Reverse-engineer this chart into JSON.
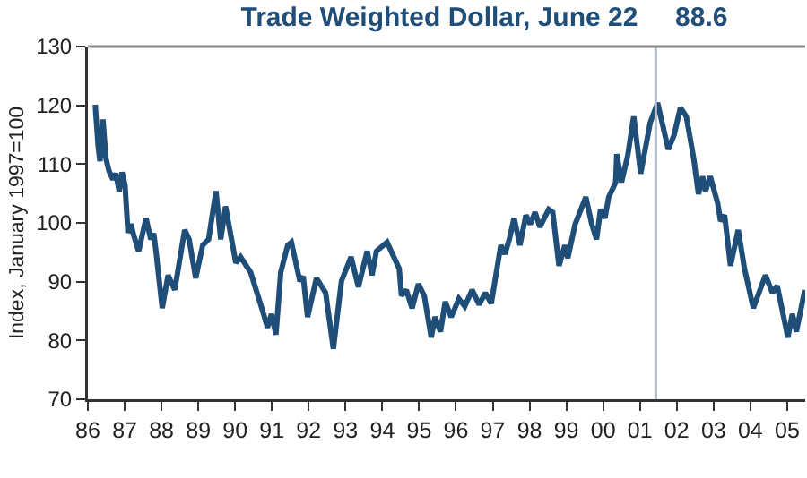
{
  "chart_data": {
    "type": "line",
    "title": "Trade Weighted Dollar, June 22     88.6",
    "ylabel": "Index, January 1997=100",
    "x": [
      1986.2,
      1986.28,
      1986.33,
      1986.41,
      1986.49,
      1986.57,
      1986.68,
      1986.76,
      1986.85,
      1986.93,
      1987.01,
      1987.09,
      1987.17,
      1987.25,
      1987.38,
      1987.58,
      1987.71,
      1987.79,
      1987.85,
      1988.02,
      1988.18,
      1988.36,
      1988.63,
      1988.75,
      1988.93,
      1989.12,
      1989.28,
      1989.48,
      1989.61,
      1989.74,
      1990.02,
      1990.15,
      1990.42,
      1990.75,
      1990.88,
      1990.99,
      1991.11,
      1991.24,
      1991.43,
      1991.53,
      1991.76,
      1991.85,
      1991.97,
      1992.21,
      1992.46,
      1992.67,
      1992.89,
      1993.15,
      1993.35,
      1993.59,
      1993.72,
      1993.84,
      1994.13,
      1994.46,
      1994.52,
      1994.65,
      1994.81,
      1994.98,
      1995.14,
      1995.33,
      1995.43,
      1995.58,
      1995.71,
      1995.87,
      1996.08,
      1996.24,
      1996.44,
      1996.63,
      1996.8,
      1996.96,
      1997.22,
      1997.33,
      1997.45,
      1997.58,
      1997.74,
      1997.9,
      1998.02,
      1998.15,
      1998.28,
      1998.52,
      1998.63,
      1998.8,
      1998.96,
      1999.04,
      1999.24,
      1999.53,
      1999.69,
      1999.82,
      1999.93,
      2000.05,
      2000.15,
      2000.34,
      2000.37,
      2000.5,
      2000.67,
      2000.83,
      2001.02,
      2001.28,
      2001.48,
      2001.77,
      2001.93,
      2002.1,
      2002.26,
      2002.46,
      2002.59,
      2002.7,
      2002.78,
      2002.91,
      2003.11,
      2003.19,
      2003.3,
      2003.46,
      2003.67,
      2003.84,
      2004.08,
      2004.41,
      2004.6,
      2004.73,
      2005.02,
      2005.14,
      2005.25,
      2005.48
    ],
    "series": [
      {
        "color": "#1f4e79",
        "values": [
          120.1,
          113.0,
          110.5,
          117.6,
          111.0,
          108.9,
          107.4,
          108.4,
          105.4,
          108.6,
          106.4,
          98.3,
          99.8,
          97.8,
          95.2,
          100.8,
          97.2,
          98.2,
          95.2,
          85.5,
          91.1,
          88.6,
          98.8,
          97.2,
          90.6,
          96.2,
          97.2,
          105.4,
          97.2,
          102.8,
          93.2,
          94.2,
          91.6,
          85.0,
          82.2,
          84.5,
          81.0,
          91.6,
          96.2,
          96.7,
          90.1,
          90.9,
          84.0,
          90.6,
          88.1,
          78.6,
          90.1,
          94.2,
          89.1,
          95.2,
          91.1,
          95.2,
          96.7,
          92.2,
          87.6,
          88.6,
          85.5,
          89.6,
          87.6,
          80.5,
          84.0,
          81.5,
          86.6,
          84.0,
          87.1,
          85.8,
          88.6,
          86.1,
          88.1,
          86.3,
          96.2,
          94.7,
          97.2,
          100.8,
          96.2,
          101.3,
          99.8,
          101.8,
          99.3,
          102.3,
          101.8,
          92.7,
          96.2,
          94.0,
          99.8,
          104.4,
          99.8,
          97.2,
          102.3,
          100.8,
          104.4,
          106.9,
          111.7,
          106.9,
          111.5,
          118.1,
          108.4,
          117.1,
          120.4,
          112.5,
          115.0,
          119.6,
          118.1,
          111.0,
          104.9,
          107.9,
          105.4,
          107.9,
          103.4,
          100.3,
          101.3,
          92.7,
          98.8,
          92.2,
          85.5,
          91.1,
          88.1,
          89.3,
          80.5,
          84.5,
          81.5,
          88.6
        ]
      }
    ],
    "xlim": [
      1986,
      2005.49
    ],
    "xticks": [
      {
        "value": 1986,
        "label": "86"
      },
      {
        "value": 1987,
        "label": "87"
      },
      {
        "value": 1988,
        "label": "88"
      },
      {
        "value": 1989,
        "label": "89"
      },
      {
        "value": 1990,
        "label": "90"
      },
      {
        "value": 1991,
        "label": "91"
      },
      {
        "value": 1992,
        "label": "92"
      },
      {
        "value": 1993,
        "label": "93"
      },
      {
        "value": 1994,
        "label": "94"
      },
      {
        "value": 1995,
        "label": "95"
      },
      {
        "value": 1996,
        "label": "96"
      },
      {
        "value": 1997,
        "label": "97"
      },
      {
        "value": 1998,
        "label": "98"
      },
      {
        "value": 1999,
        "label": "99"
      },
      {
        "value": 2000,
        "label": "00"
      },
      {
        "value": 2001,
        "label": "01"
      },
      {
        "value": 2002,
        "label": "02"
      },
      {
        "value": 2003,
        "label": "03"
      },
      {
        "value": 2004,
        "label": "04"
      },
      {
        "value": 2005,
        "label": "05"
      }
    ],
    "ylim": [
      70,
      130
    ],
    "yticks": [
      70,
      80,
      90,
      100,
      110,
      120,
      130
    ],
    "ref_lines": [
      {
        "axis": "x",
        "value": 2001.43,
        "color": "#b4bccb"
      }
    ],
    "line_style": "solid"
  }
}
